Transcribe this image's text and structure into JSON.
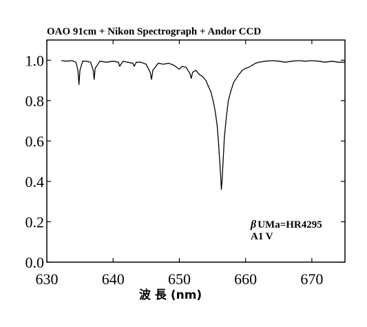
{
  "chart_data": {
    "type": "line",
    "title": "OAO 91cm + Nikon Spectrograph + Andor CCD",
    "xlabel": "波 長 (nm)",
    "ylabel": "",
    "xlim": [
      630,
      675
    ],
    "ylim": [
      0.0,
      1.1
    ],
    "x_ticks": [
      630,
      640,
      650,
      660,
      670
    ],
    "y_ticks": [
      0.0,
      0.2,
      0.4,
      0.6,
      0.8,
      1.0
    ],
    "x_tick_labels": [
      "630",
      "640",
      "650",
      "660",
      "670"
    ],
    "y_tick_labels": [
      "0.0",
      "0.2",
      "0.4",
      "0.6",
      "0.8",
      "1.0"
    ],
    "grid": false,
    "annotations": [
      {
        "greek": "β",
        "text": "UMa=HR4295"
      },
      {
        "text": "A1 V"
      }
    ],
    "series": [
      {
        "x": [
          632.2,
          633.0,
          633.8,
          634.4,
          634.7,
          634.85,
          635.0,
          635.4,
          636.0,
          636.6,
          637.0,
          637.15,
          637.3,
          638.0,
          639.0,
          640.0,
          640.8,
          641.0,
          641.5,
          642.2,
          643.0,
          643.2,
          643.5,
          644.2,
          645.0,
          645.6,
          645.8,
          646.0,
          646.8,
          647.6,
          648.4,
          649.2,
          649.8,
          650.0,
          650.4,
          651.0,
          651.6,
          651.8,
          652.0,
          652.5,
          653.0,
          653.5,
          654.0,
          654.4,
          654.8,
          655.1,
          655.4,
          655.7,
          655.9,
          656.1,
          656.25,
          656.35,
          656.45,
          656.6,
          656.8,
          657.1,
          657.4,
          657.8,
          658.2,
          658.6,
          659.0,
          659.5,
          660.0,
          660.5,
          661.0,
          661.5,
          662.0,
          663.0,
          664.0,
          665.0,
          666.0,
          667.0,
          668.0,
          669.0,
          670.0,
          671.0,
          672.0,
          673.0,
          674.0,
          675.0
        ],
        "values": [
          0.998,
          0.995,
          0.998,
          0.99,
          0.95,
          0.88,
          0.95,
          0.995,
          0.995,
          0.99,
          0.95,
          0.905,
          0.96,
          0.995,
          0.99,
          0.995,
          0.99,
          0.97,
          0.995,
          0.99,
          0.985,
          0.97,
          0.99,
          0.99,
          0.98,
          0.94,
          0.905,
          0.95,
          0.985,
          0.98,
          0.985,
          0.975,
          0.96,
          0.955,
          0.97,
          0.965,
          0.935,
          0.91,
          0.94,
          0.95,
          0.93,
          0.92,
          0.9,
          0.87,
          0.84,
          0.8,
          0.75,
          0.68,
          0.6,
          0.5,
          0.42,
          0.36,
          0.4,
          0.5,
          0.62,
          0.72,
          0.8,
          0.85,
          0.89,
          0.91,
          0.93,
          0.95,
          0.96,
          0.965,
          0.975,
          0.985,
          0.99,
          0.995,
          0.998,
          0.995,
          0.99,
          0.995,
          0.998,
          0.995,
          0.998,
          0.995,
          0.99,
          0.995,
          0.99,
          0.99
        ]
      }
    ]
  }
}
